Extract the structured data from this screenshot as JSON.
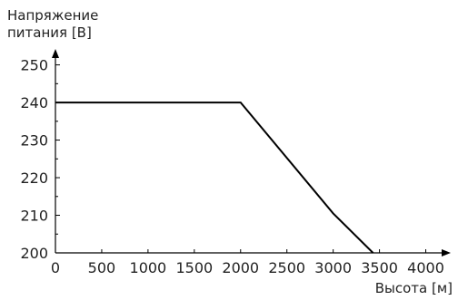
{
  "chart_data": {
    "type": "line",
    "title": "",
    "xlabel": "Высота [м]",
    "ylabel_lines": [
      "Напряжение",
      "питания [В]"
    ],
    "xlim": [
      0,
      4250
    ],
    "ylim": [
      200,
      254
    ],
    "x_ticks": [
      0,
      500,
      1000,
      1500,
      2000,
      2500,
      3000,
      3500,
      4000
    ],
    "x_tick_labels": [
      "0",
      "500",
      "1000",
      "1500",
      "2000",
      "2500",
      "3000",
      "3500",
      "4000"
    ],
    "y_ticks": [
      200,
      210,
      220,
      230,
      240,
      250
    ],
    "y_tick_labels": [
      "200",
      "210",
      "220",
      "230",
      "240",
      "250"
    ],
    "y_minor_ticks": [
      205,
      215,
      225,
      235,
      245
    ],
    "grid": false,
    "legend": "none",
    "series": [
      {
        "x": [
          0,
          2000,
          3000,
          3430
        ],
        "y": [
          240,
          240,
          210.5,
          200
        ]
      }
    ]
  }
}
